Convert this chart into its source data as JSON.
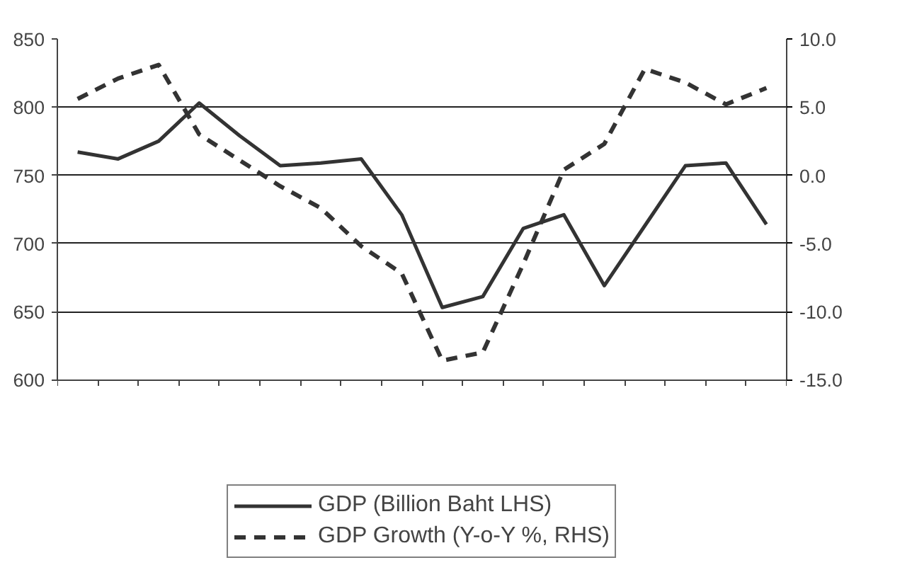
{
  "chart_data": {
    "type": "line",
    "categories": [
      null,
      null,
      null,
      null,
      null,
      null,
      null,
      null,
      null,
      null,
      null,
      null,
      null,
      null,
      null,
      null,
      null,
      null
    ],
    "series": [
      {
        "name": "GDP (Billion Baht LHS)",
        "color": "#333333",
        "line_style": "solid",
        "values": [
          767,
          762,
          775,
          803,
          779,
          757,
          759,
          762,
          721,
          653,
          661,
          711,
          721,
          669,
          713,
          757,
          759,
          714
        ]
      },
      {
        "name": "GDP Growth (Y-o-Y %, RHS)",
        "color": "#333333",
        "line_style": "dashed",
        "axis": "y2",
        "values": [
          5.6,
          7.1,
          8.1,
          3.0,
          1.1,
          -0.8,
          -2.4,
          -5.2,
          -7.2,
          -13.6,
          -13.0,
          -6.5,
          0.4,
          2.3,
          7.8,
          6.8,
          5.2,
          6.4
        ]
      }
    ],
    "ylim": [
      600,
      850
    ],
    "yticks": [
      600,
      650,
      700,
      750,
      800,
      850
    ],
    "y2lim": [
      -15,
      10
    ],
    "y2ticks": [
      {
        "value": -15,
        "label": "-15.0"
      },
      {
        "value": -10,
        "label": "-10.0"
      },
      {
        "value": -5,
        "label": "-5.0"
      },
      {
        "value": 0,
        "label": "0.0"
      },
      {
        "value": 5,
        "label": "5.0"
      },
      {
        "value": 10,
        "label": "10.0"
      }
    ],
    "grid": "y",
    "legend": "bottom",
    "tick_labels": "y",
    "marker": "none"
  }
}
